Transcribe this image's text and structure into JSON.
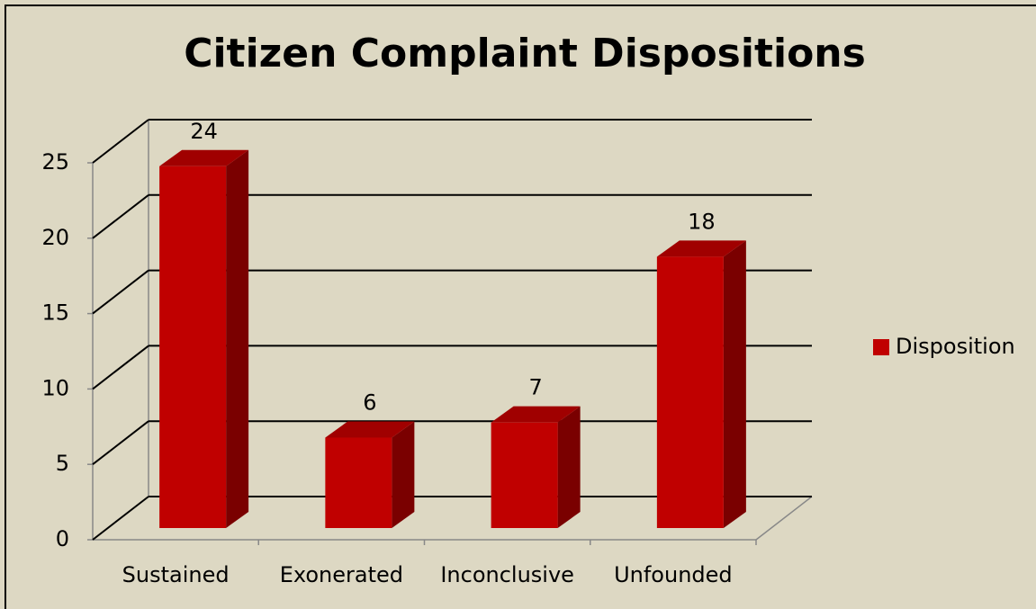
{
  "chart_data": {
    "type": "bar3d",
    "title": "Citizen Complaint Dispositions",
    "categories": [
      "Sustained",
      "Exonerated",
      "Inconclusive",
      "Unfounded"
    ],
    "series": [
      {
        "name": "Disposition",
        "color": "#c00000",
        "values": [
          24,
          6,
          7,
          18
        ]
      }
    ],
    "ylim": [
      0,
      25
    ],
    "yticks": [
      0,
      5,
      10,
      15,
      20,
      25
    ],
    "grid": true,
    "legend": "right"
  }
}
